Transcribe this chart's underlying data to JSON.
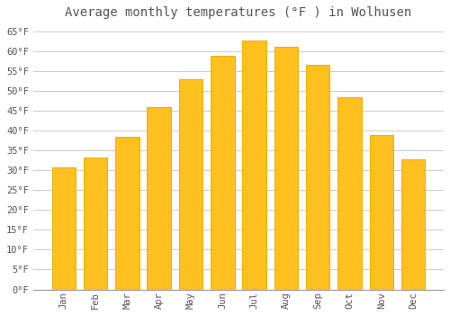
{
  "title": "Average monthly temperatures (°F ) in Wolhusen",
  "months": [
    "Jan",
    "Feb",
    "Mar",
    "Apr",
    "May",
    "Jun",
    "Jul",
    "Aug",
    "Sep",
    "Oct",
    "Nov",
    "Dec"
  ],
  "values": [
    30.7,
    33.3,
    38.5,
    46.0,
    53.0,
    59.0,
    62.8,
    61.2,
    56.7,
    48.5,
    39.0,
    32.7
  ],
  "bar_color": "#FFC020",
  "bar_edge_color": "#E8A800",
  "background_color": "#FFFFFF",
  "grid_color": "#CCCCCC",
  "text_color": "#555555",
  "ylim": [
    0,
    67
  ],
  "yticks": [
    0,
    5,
    10,
    15,
    20,
    25,
    30,
    35,
    40,
    45,
    50,
    55,
    60,
    65
  ],
  "title_fontsize": 10,
  "tick_fontsize": 7.5,
  "font_family": "monospace",
  "bar_width": 0.75
}
